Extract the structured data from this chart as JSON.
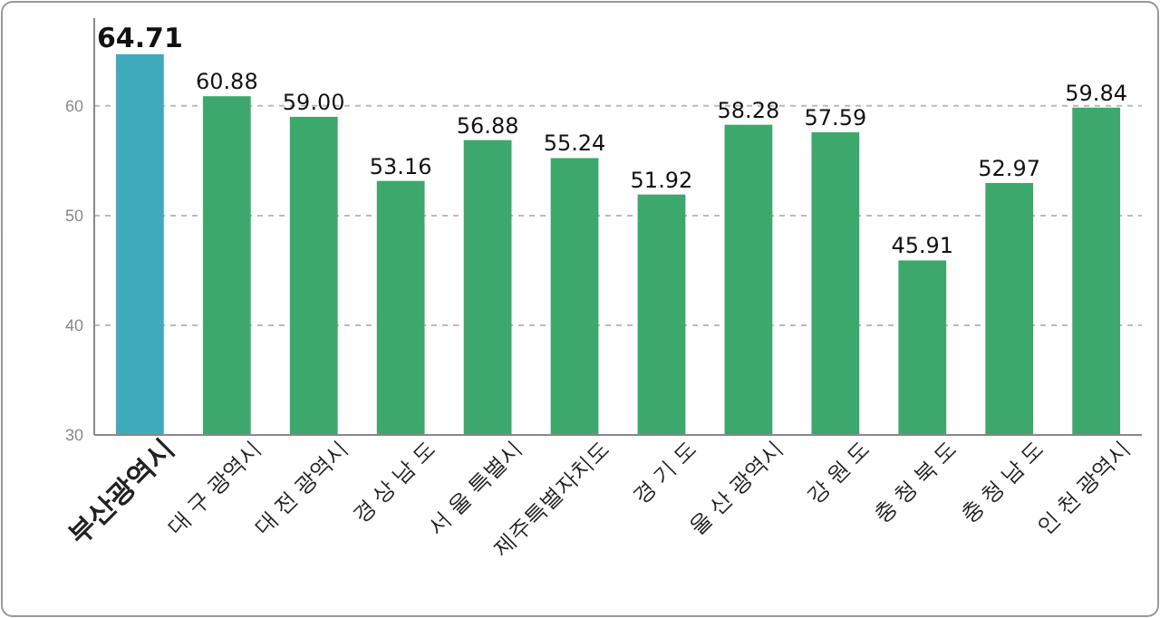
{
  "chart_data": {
    "type": "bar",
    "categories": [
      "부산광역시",
      "대 구 광역시",
      "대 전 광역시",
      "경 상 남 도",
      "서 울 특별시",
      "제주특별자치도",
      "경 기 도",
      "울 산 광역시",
      "강 원 도",
      "충 청 북 도",
      "충 청 남 도",
      "인 천 광역시"
    ],
    "values": [
      64.71,
      60.88,
      59.0,
      53.16,
      56.88,
      55.24,
      51.92,
      58.28,
      57.59,
      45.91,
      52.97,
      59.84
    ],
    "value_labels": [
      "64.71",
      "60.88",
      "59.00",
      "53.16",
      "56.88",
      "55.24",
      "51.92",
      "58.28",
      "57.59",
      "45.91",
      "52.97",
      "59.84"
    ],
    "colors": [
      "#3eaabb",
      "#3da86c",
      "#3da86c",
      "#3da86c",
      "#3da86c",
      "#3da86c",
      "#3da86c",
      "#3da86c",
      "#3da86c",
      "#3da86c",
      "#3da86c",
      "#3da86c"
    ],
    "ylim": [
      30,
      68
    ],
    "yticks": [
      30,
      40,
      50,
      60
    ],
    "grid": "y"
  }
}
